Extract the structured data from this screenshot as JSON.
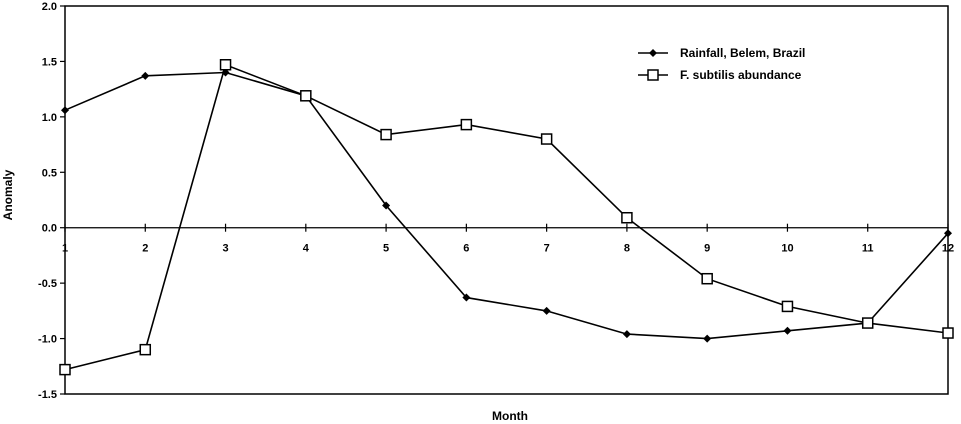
{
  "chart_data": {
    "type": "line",
    "xlabel": "Month",
    "ylabel": "Anomaly",
    "x": [
      1,
      2,
      3,
      4,
      5,
      6,
      7,
      8,
      9,
      10,
      11,
      12
    ],
    "x_tick_labels": [
      "1",
      "2",
      "3",
      "4",
      "5",
      "6",
      "7",
      "8",
      "9",
      "10",
      "11",
      "12"
    ],
    "xlim": [
      1,
      12
    ],
    "ylim": [
      -1.5,
      2.0
    ],
    "y_tick_labels": [
      "2.0",
      "1.5",
      "1.0",
      "0.5",
      "0.0",
      "-0.5",
      "-1.0",
      "-1.5"
    ],
    "y_ticks": [
      2.0,
      1.5,
      1.0,
      0.5,
      0.0,
      -0.5,
      -1.0,
      -1.5
    ],
    "grid": false,
    "zero_line": true,
    "legend_position": "top-right",
    "series": [
      {
        "name": "Rainfall, Belem, Brazil",
        "marker": "filled-diamond",
        "color": "#000000",
        "values": [
          1.06,
          1.37,
          1.4,
          1.19,
          0.2,
          -0.63,
          -0.75,
          -0.96,
          -1.0,
          -0.93,
          -0.86,
          -0.05
        ]
      },
      {
        "name": "F. subtilis abundance",
        "marker": "open-square",
        "color": "#000000",
        "values": [
          -1.28,
          -1.1,
          1.47,
          1.19,
          0.84,
          0.93,
          0.8,
          0.09,
          -0.46,
          -0.71,
          -0.86,
          -0.95
        ]
      }
    ]
  }
}
